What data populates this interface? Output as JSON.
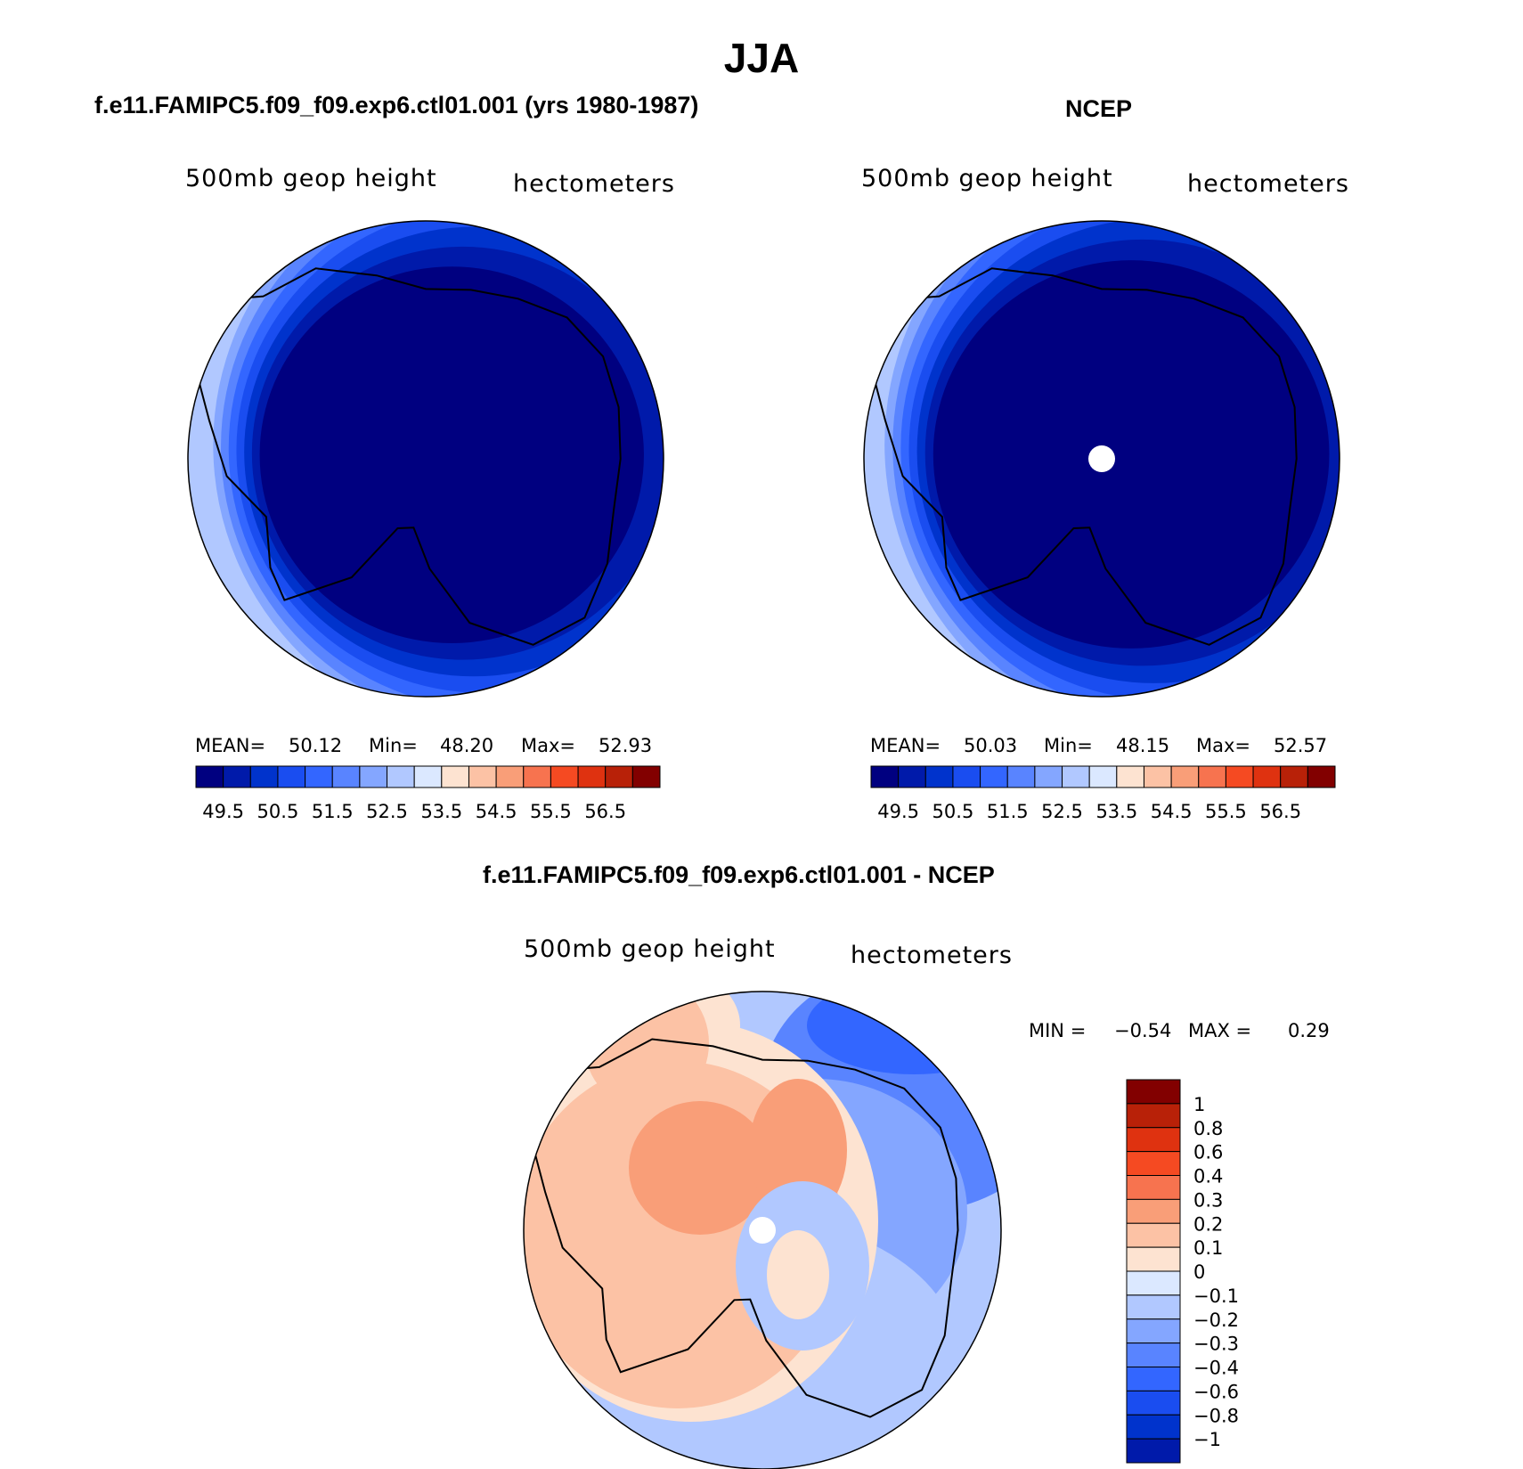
{
  "figure": {
    "season": "JJA",
    "colors": {
      "abs": [
        "#000080",
        "#001aaa",
        "#0033cc",
        "#1a4df0",
        "#3366ff",
        "#5984ff",
        "#84a6ff",
        "#b1c8ff",
        "#dbe8ff",
        "#fde3d1",
        "#fcc2a5",
        "#f99e78",
        "#f7734f",
        "#f54a22",
        "#df3210",
        "#b82108",
        "#820000"
      ],
      "diff": [
        "#820000",
        "#b82108",
        "#df3210",
        "#f54a22",
        "#f7734f",
        "#f99e78",
        "#fcc2a5",
        "#fde3d1",
        "#dbe8ff",
        "#b1c8ff",
        "#84a6ff",
        "#5984ff",
        "#3366ff",
        "#1a4df0",
        "#0033cc",
        "#001aaa"
      ],
      "land_outline": "#000000"
    }
  },
  "chart_data": [
    {
      "type": "heatmap",
      "title": "f.e11.FAMIPC5.f09_f09.exp6.ctl01.001 (yrs 1980-1987)",
      "left_label": "500mb geop height",
      "right_label": "hectometers",
      "projection": "south-polar-stereographic",
      "stats": {
        "mean_label": "MEAN=",
        "mean": "50.12",
        "min_label": "Min=",
        "min": "48.20",
        "max_label": "Max=",
        "max": "52.93"
      },
      "levels": [
        49.5,
        50.0,
        50.5,
        51.0,
        51.5,
        52.0,
        52.5,
        53.0,
        53.5,
        54.0,
        54.5,
        55.0,
        55.5,
        56.0,
        56.5
      ],
      "colorbar_labels": [
        "49.5",
        "50.5",
        "51.5",
        "52.5",
        "53.5",
        "54.5",
        "55.5",
        "56.5"
      ],
      "field": {
        "center_value": 48.3,
        "rim_value": 52.9,
        "gradient_toward": "west"
      }
    },
    {
      "type": "heatmap",
      "title": "NCEP",
      "left_label": "500mb geop height",
      "right_label": "hectometers",
      "projection": "south-polar-stereographic",
      "stats": {
        "mean_label": "MEAN=",
        "mean": "50.03",
        "min_label": "Min=",
        "min": "48.15",
        "max_label": "Max=",
        "max": "52.57"
      },
      "levels": [
        49.5,
        50.0,
        50.5,
        51.0,
        51.5,
        52.0,
        52.5,
        53.0,
        53.5,
        54.0,
        54.5,
        55.0,
        55.5,
        56.0,
        56.5
      ],
      "colorbar_labels": [
        "49.5",
        "50.5",
        "51.5",
        "52.5",
        "53.5",
        "54.5",
        "55.5",
        "56.5"
      ],
      "field": {
        "center_value": 48.2,
        "rim_value": 52.6,
        "gradient_toward": "west",
        "missing_at_pole": true
      }
    },
    {
      "type": "heatmap",
      "title": "f.e11.FAMIPC5.f09_f09.exp6.ctl01.001 - NCEP",
      "left_label": "500mb geop height",
      "right_label": "hectometers",
      "projection": "south-polar-stereographic",
      "stats": {
        "min_label": "MIN =",
        "min": "−0.54",
        "max_label": "MAX =",
        "max": "0.29"
      },
      "levels": [
        1,
        0.8,
        0.6,
        0.4,
        0.3,
        0.2,
        0.1,
        0,
        -0.1,
        -0.2,
        -0.3,
        -0.4,
        -0.6,
        -0.8,
        -1
      ],
      "colorbar_labels": [
        "1",
        "0.8",
        "0.6",
        "0.4",
        "0.3",
        "0.2",
        "0.1",
        "0",
        "−0.1",
        "−0.2",
        "−0.3",
        "−0.4",
        "−0.6",
        "−0.8",
        "−1"
      ],
      "field": {
        "min": -0.54,
        "max": 0.29,
        "positive_region": "west and over Antarctica",
        "negative_region": "east and north-east",
        "missing_at_pole": true
      }
    }
  ]
}
